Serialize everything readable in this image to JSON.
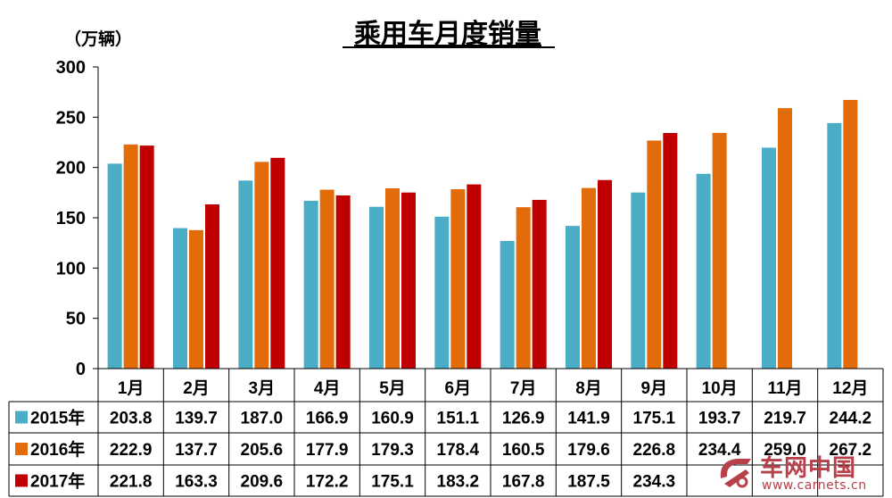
{
  "chart_data": {
    "type": "bar",
    "title": "乘用车月度销量",
    "unit_label": "（万辆）",
    "categories": [
      "1月",
      "2月",
      "3月",
      "4月",
      "5月",
      "6月",
      "7月",
      "8月",
      "9月",
      "10月",
      "11月",
      "12月"
    ],
    "yticks": [
      "0",
      "50",
      "100",
      "150",
      "200",
      "250",
      "300"
    ],
    "ylim": [
      0,
      300
    ],
    "grid": false,
    "legend": "table-left",
    "series": [
      {
        "name": "2015年",
        "color": "#4bacc6",
        "values": [
          203.8,
          139.7,
          187.0,
          166.9,
          160.9,
          151.1,
          126.9,
          141.9,
          175.1,
          193.7,
          219.7,
          244.2
        ],
        "labels": [
          "203.8",
          "139.7",
          "187.0",
          "166.9",
          "160.9",
          "151.1",
          "126.9",
          "141.9",
          "175.1",
          "193.7",
          "219.7",
          "244.2"
        ]
      },
      {
        "name": "2016年",
        "color": "#e36c0a",
        "values": [
          222.9,
          137.7,
          205.6,
          177.9,
          179.3,
          178.4,
          160.5,
          179.6,
          226.8,
          234.4,
          259.0,
          267.2
        ],
        "labels": [
          "222.9",
          "137.7",
          "205.6",
          "177.9",
          "179.3",
          "178.4",
          "160.5",
          "179.6",
          "226.8",
          "234.4",
          "259.0",
          "267.2"
        ]
      },
      {
        "name": "2017年",
        "color": "#c00000",
        "values": [
          221.8,
          163.3,
          209.6,
          172.2,
          175.1,
          183.2,
          167.8,
          187.5,
          234.3,
          null,
          null,
          null
        ],
        "labels": [
          "221.8",
          "163.3",
          "209.6",
          "172.2",
          "175.1",
          "183.2",
          "167.8",
          "187.5",
          "234.3",
          "",
          "",
          ""
        ]
      }
    ]
  },
  "watermark": {
    "name": "车网中国",
    "url": "www.carnets.cn"
  }
}
